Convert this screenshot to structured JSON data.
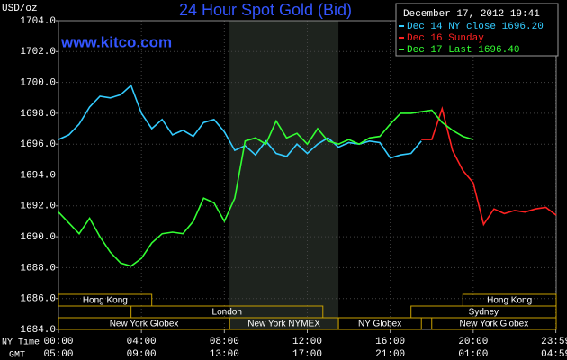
{
  "chart_data": {
    "type": "line",
    "title": "24 Hour Spot Gold (Bid)",
    "ylabel": "USD/oz",
    "watermark": "www.kitco.com",
    "timestamp": "December 17, 2012 19:41",
    "xlabel": "NY Time",
    "x2label": "GMT",
    "x": [
      0,
      0.5,
      1,
      1.5,
      2,
      2.5,
      3,
      3.5,
      4,
      4.5,
      5,
      5.5,
      6,
      6.5,
      7,
      7.5,
      8,
      8.5,
      9,
      9.5,
      10,
      10.5,
      11,
      11.5,
      12,
      12.5,
      13,
      13.5,
      14,
      14.5,
      15,
      15.5,
      16,
      16.5,
      17,
      17.5,
      18,
      18.5,
      19,
      19.5,
      20,
      20.5,
      21,
      21.5,
      22,
      22.5,
      23,
      23.5,
      24
    ],
    "series": [
      {
        "name": "Dec 14 NY close 1696.20",
        "color": "#33ccff",
        "values": [
          1696.3,
          1696.6,
          1697.3,
          1698.4,
          1699.1,
          1699.0,
          1699.2,
          1699.8,
          1698.0,
          1697.0,
          1697.6,
          1696.6,
          1696.9,
          1696.5,
          1697.4,
          1697.6,
          1696.8,
          1695.6,
          1695.9,
          1695.3,
          1696.2,
          1695.4,
          1695.2,
          1696.0,
          1695.4,
          1696.0,
          1696.4,
          1695.8,
          1696.1,
          1696.0,
          1696.2,
          1696.1,
          1695.1,
          1695.3,
          1695.4,
          1696.2,
          null,
          null,
          null,
          null,
          null,
          null,
          null,
          null,
          null,
          null,
          null,
          null,
          null
        ]
      },
      {
        "name": "Dec 16 Sunday",
        "color": "#ff2222",
        "values": [
          null,
          null,
          null,
          null,
          null,
          null,
          null,
          null,
          null,
          null,
          null,
          null,
          null,
          null,
          null,
          null,
          null,
          null,
          null,
          null,
          null,
          null,
          null,
          null,
          null,
          null,
          null,
          null,
          null,
          null,
          null,
          null,
          null,
          null,
          null,
          1696.3,
          1696.3,
          1698.3,
          1695.6,
          1694.3,
          1693.5,
          1690.8,
          1691.8,
          1691.5,
          1691.7,
          1691.6,
          1691.8,
          1691.9,
          1691.4
        ]
      },
      {
        "name": "Dec 17 Last 1696.40",
        "color": "#33ff33",
        "values": [
          1691.6,
          1690.9,
          1690.2,
          1691.2,
          1690.0,
          1689.0,
          1688.3,
          1688.1,
          1688.6,
          1689.6,
          1690.2,
          1690.3,
          1690.2,
          1691.0,
          1692.5,
          1692.2,
          1691.0,
          1692.5,
          1696.2,
          1696.4,
          1696.0,
          1697.5,
          1696.4,
          1696.7,
          1696.0,
          1697.0,
          1696.2,
          1696.0,
          1696.3,
          1696.0,
          1696.4,
          1696.5,
          1697.3,
          1698.0,
          1698.0,
          1698.1,
          1698.2,
          1697.4,
          1696.9,
          1696.5,
          1696.3,
          null,
          null,
          null,
          null,
          null,
          null,
          null,
          null
        ]
      }
    ],
    "xlim": [
      0,
      24
    ],
    "xticks": [
      {
        "value": 0,
        "label": "00:00"
      },
      {
        "value": 4,
        "label": "04:00"
      },
      {
        "value": 8,
        "label": "08:00"
      },
      {
        "value": 12,
        "label": "12:00"
      },
      {
        "value": 16,
        "label": "16:00"
      },
      {
        "value": 20,
        "label": "20:00"
      },
      {
        "value": 23.9833,
        "label": "23:59"
      }
    ],
    "x2ticks": [
      {
        "value": 0,
        "label": "05:00"
      },
      {
        "value": 4,
        "label": "09:00"
      },
      {
        "value": 8,
        "label": "13:00"
      },
      {
        "value": 12,
        "label": "17:00"
      },
      {
        "value": 16,
        "label": "21:00"
      },
      {
        "value": 20,
        "label": "01:00"
      },
      {
        "value": 23.9833,
        "label": "04:59"
      }
    ],
    "ylim": [
      1684,
      1704
    ],
    "yticks": [
      {
        "value": 1684,
        "label": "1684.0"
      },
      {
        "value": 1686,
        "label": "1686.0"
      },
      {
        "value": 1688,
        "label": "1688.0"
      },
      {
        "value": 1690,
        "label": "1690.0"
      },
      {
        "value": 1692,
        "label": "1692.0"
      },
      {
        "value": 1694,
        "label": "1694.0"
      },
      {
        "value": 1696,
        "label": "1696.0"
      },
      {
        "value": 1698,
        "label": "1698.0"
      },
      {
        "value": 1700,
        "label": "1700.0"
      },
      {
        "value": 1702,
        "label": "1702.0"
      },
      {
        "value": 1704,
        "label": "1704.0"
      }
    ],
    "grid": true,
    "sessions": [
      [
        {
          "label": "Hong Kong",
          "start": 0,
          "end": 4.5
        },
        {
          "label": "Hong Kong",
          "start": 19.5,
          "end": 24
        }
      ],
      [
        {
          "label": "London",
          "start": 3.5,
          "end": 12.75
        },
        {
          "label": "Sydney",
          "start": 17,
          "end": 24
        }
      ],
      [
        {
          "label": "New York Globex",
          "start": 0,
          "end": 8.25
        },
        {
          "label": "New York NYMEX",
          "start": 8.25,
          "end": 13.5
        },
        {
          "label": "NY Globex",
          "start": 13.5,
          "end": 17.5
        },
        {
          "label": "New York Globex",
          "start": 18,
          "end": 24
        }
      ]
    ]
  }
}
